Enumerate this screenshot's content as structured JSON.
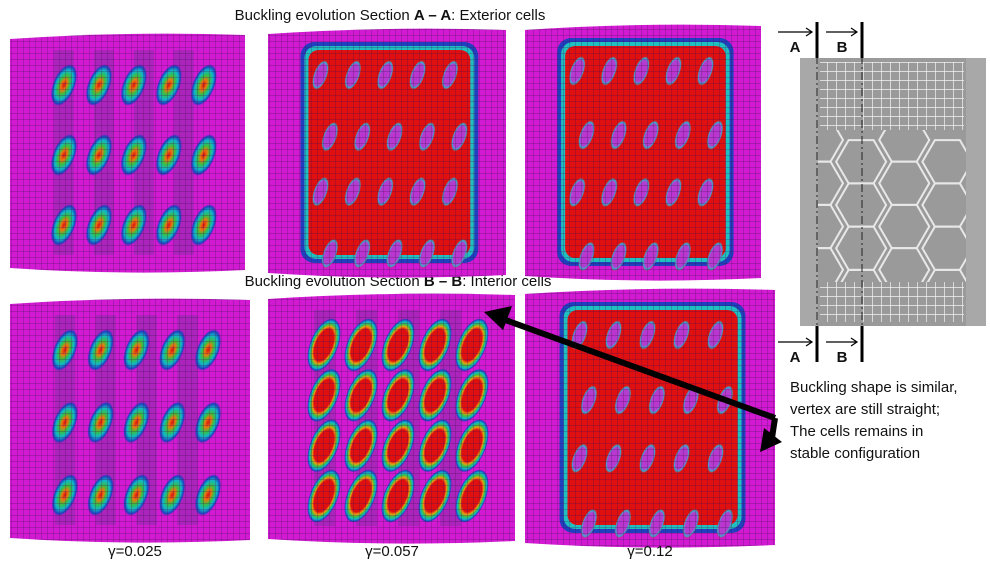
{
  "titles": [
    {
      "prefix": "Buckling evolution Section ",
      "section": "A – A",
      "suffix": ": Exterior cells"
    },
    {
      "prefix": "Buckling evolution Section ",
      "section": "B – B",
      "suffix": ": Interior cells"
    }
  ],
  "strain_labels": [
    "γ=0.025",
    "γ=0.057",
    "γ=0.12"
  ],
  "section_markers": {
    "top": [
      "A",
      "B"
    ],
    "bottom": [
      "A",
      "B"
    ]
  },
  "annotation": [
    "Buckling shape is similar,",
    "vertex are still straight;",
    "The cells remains in",
    "stable configuration"
  ]
}
